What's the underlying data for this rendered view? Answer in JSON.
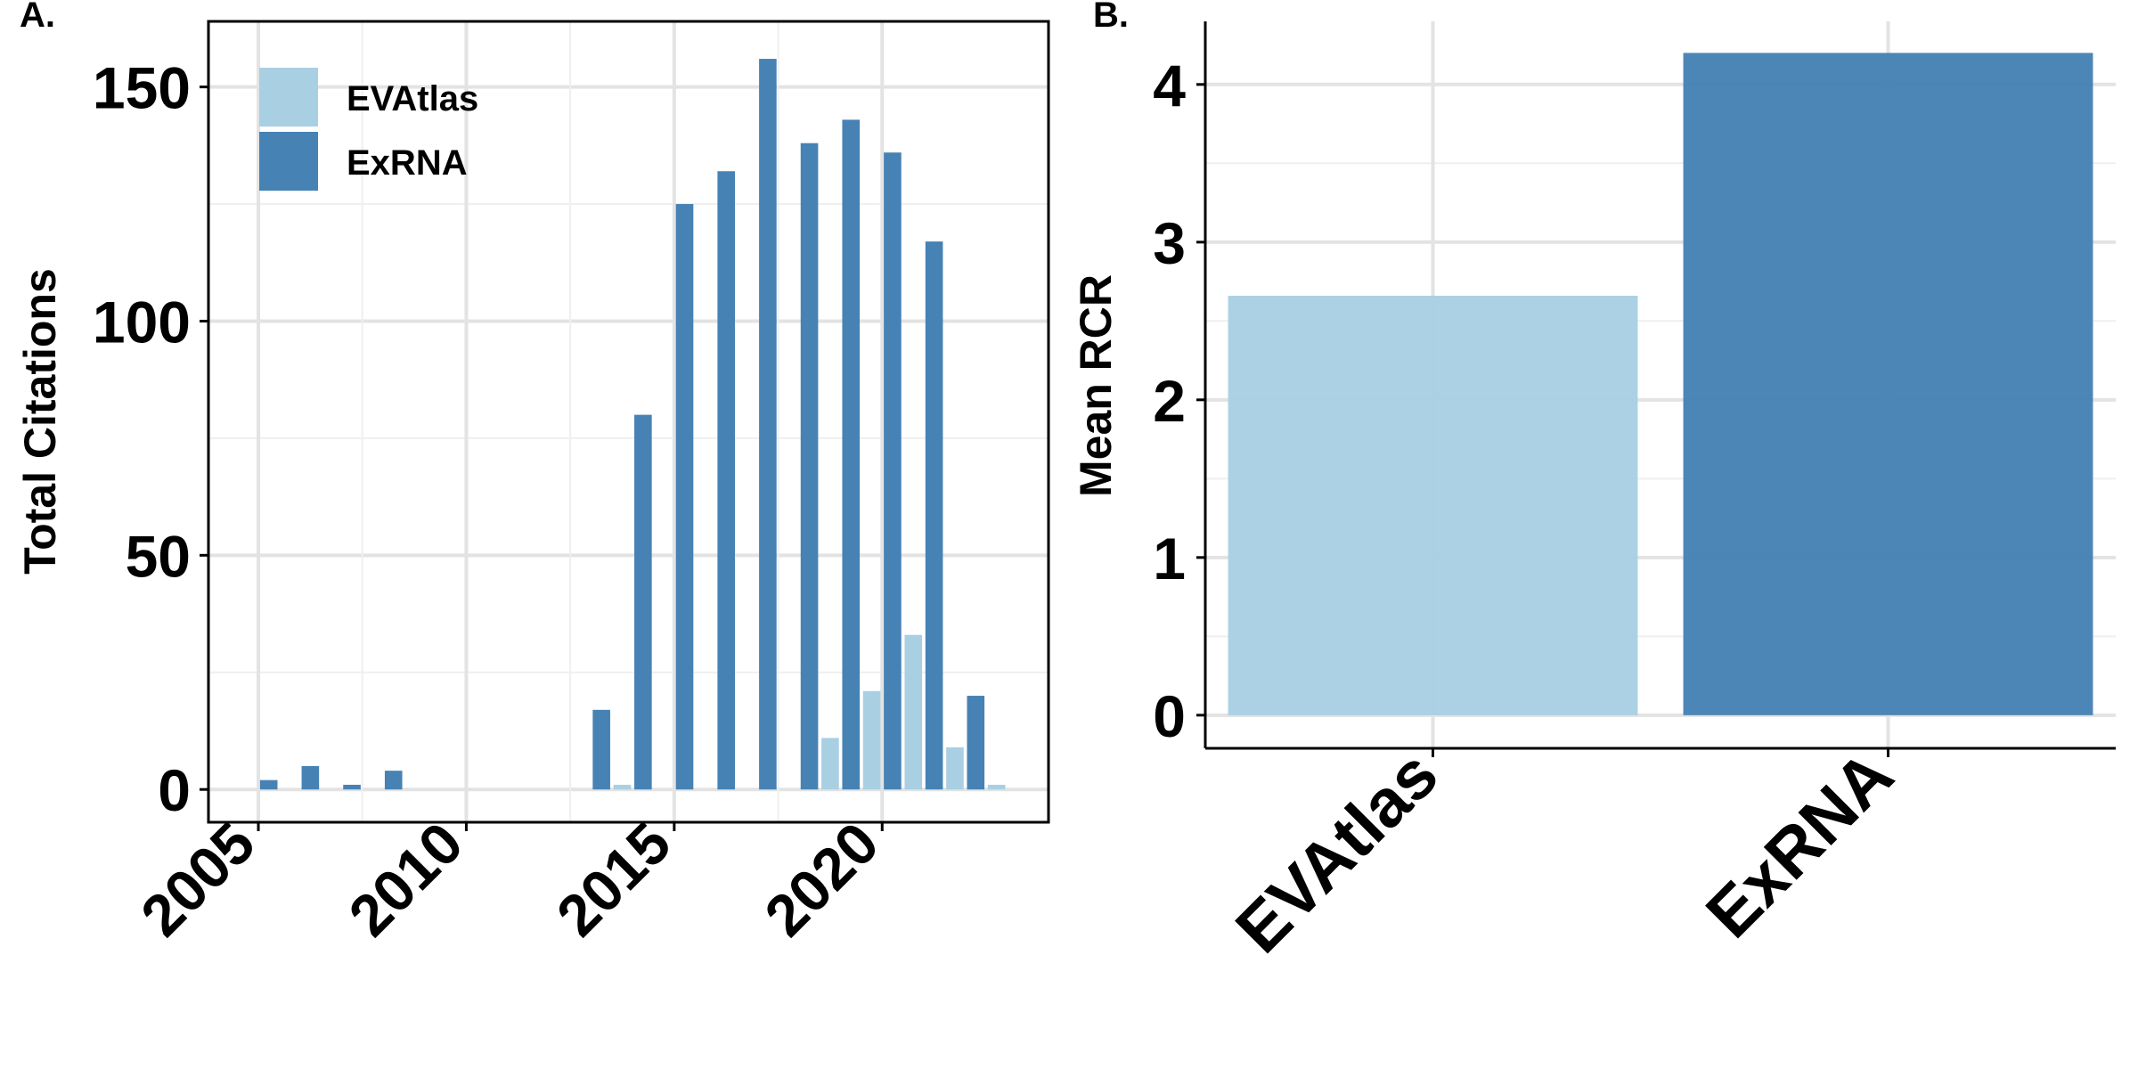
{
  "chart_data": [
    {
      "panel_label": "A.",
      "type": "bar",
      "ylabel": "Total Citations",
      "xlabel": "",
      "xlim": [
        2003.8,
        2024.0
      ],
      "ylim": [
        -7,
        164
      ],
      "x_ticks": [
        2005,
        2010,
        2015,
        2020
      ],
      "y_ticks": [
        0,
        50,
        100,
        150
      ],
      "grid": true,
      "legend_position": "top-left",
      "series": [
        {
          "name": "EVAtlas",
          "color": "#a9cfe3",
          "points": [
            {
              "x": 2014,
              "y": 1
            },
            {
              "x": 2019,
              "y": 11
            },
            {
              "x": 2020,
              "y": 21
            },
            {
              "x": 2021,
              "y": 33
            },
            {
              "x": 2022,
              "y": 9
            },
            {
              "x": 2023,
              "y": 1
            }
          ]
        },
        {
          "name": "ExRNA",
          "color": "#4682b4",
          "points": [
            {
              "x": 2005,
              "y": 2
            },
            {
              "x": 2006,
              "y": 5
            },
            {
              "x": 2007,
              "y": 1
            },
            {
              "x": 2008,
              "y": 4
            },
            {
              "x": 2013,
              "y": 17
            },
            {
              "x": 2014,
              "y": 80
            },
            {
              "x": 2015,
              "y": 125
            },
            {
              "x": 2016,
              "y": 132
            },
            {
              "x": 2017,
              "y": 156
            },
            {
              "x": 2018,
              "y": 138
            },
            {
              "x": 2019,
              "y": 143
            },
            {
              "x": 2020,
              "y": 136
            },
            {
              "x": 2021,
              "y": 117
            },
            {
              "x": 2022,
              "y": 20
            }
          ]
        }
      ]
    },
    {
      "panel_label": "B.",
      "type": "bar",
      "ylabel": "Mean RCR",
      "xlabel": "",
      "categories": [
        "EVAtlas",
        "ExRNA"
      ],
      "values": [
        2.66,
        4.2
      ],
      "colors": [
        "#a9cfe3",
        "#4682b4"
      ],
      "ylim": [
        -0.21,
        4.4
      ],
      "y_ticks": [
        0,
        1,
        2,
        3,
        4
      ],
      "grid": true
    }
  ]
}
